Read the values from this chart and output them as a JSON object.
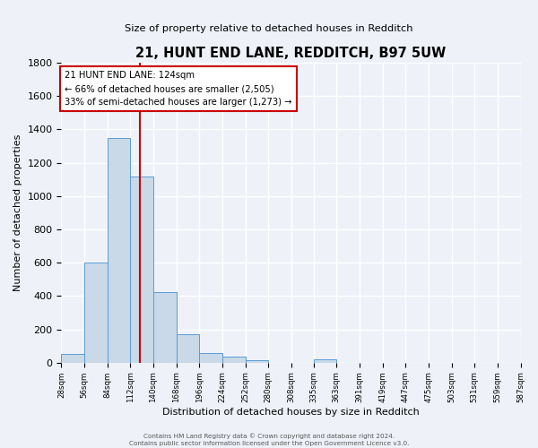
{
  "title": "21, HUNT END LANE, REDDITCH, B97 5UW",
  "subtitle": "Size of property relative to detached houses in Redditch",
  "xlabel": "Distribution of detached houses by size in Redditch",
  "ylabel": "Number of detached properties",
  "bin_edges": [
    28,
    56,
    84,
    112,
    140,
    168,
    196,
    224,
    252,
    280,
    308,
    335,
    363,
    391,
    419,
    447,
    475,
    503,
    531,
    559,
    587
  ],
  "bin_labels": [
    "28sqm",
    "56sqm",
    "84sqm",
    "112sqm",
    "140sqm",
    "168sqm",
    "196sqm",
    "224sqm",
    "252sqm",
    "280sqm",
    "308sqm",
    "335sqm",
    "363sqm",
    "391sqm",
    "419sqm",
    "447sqm",
    "475sqm",
    "503sqm",
    "531sqm",
    "559sqm",
    "587sqm"
  ],
  "counts": [
    55,
    600,
    1350,
    1120,
    425,
    170,
    60,
    35,
    15,
    0,
    0,
    20,
    0,
    0,
    0,
    0,
    0,
    0,
    0,
    0
  ],
  "bar_color": "#c9d9e8",
  "bar_edge_color": "#5b9bd5",
  "property_line_x": 124,
  "vline_color": "#cc0000",
  "annotation_text": "21 HUNT END LANE: 124sqm\n← 66% of detached houses are smaller (2,505)\n33% of semi-detached houses are larger (1,273) →",
  "annotation_box_edgecolor": "#cc0000",
  "annotation_box_facecolor": "#ffffff",
  "ylim": [
    0,
    1800
  ],
  "yticks": [
    0,
    200,
    400,
    600,
    800,
    1000,
    1200,
    1400,
    1600,
    1800
  ],
  "footer_line1": "Contains HM Land Registry data © Crown copyright and database right 2024.",
  "footer_line2": "Contains public sector information licensed under the Open Government Licence v3.0.",
  "bg_color": "#eef2f8",
  "grid_color": "#ffffff"
}
